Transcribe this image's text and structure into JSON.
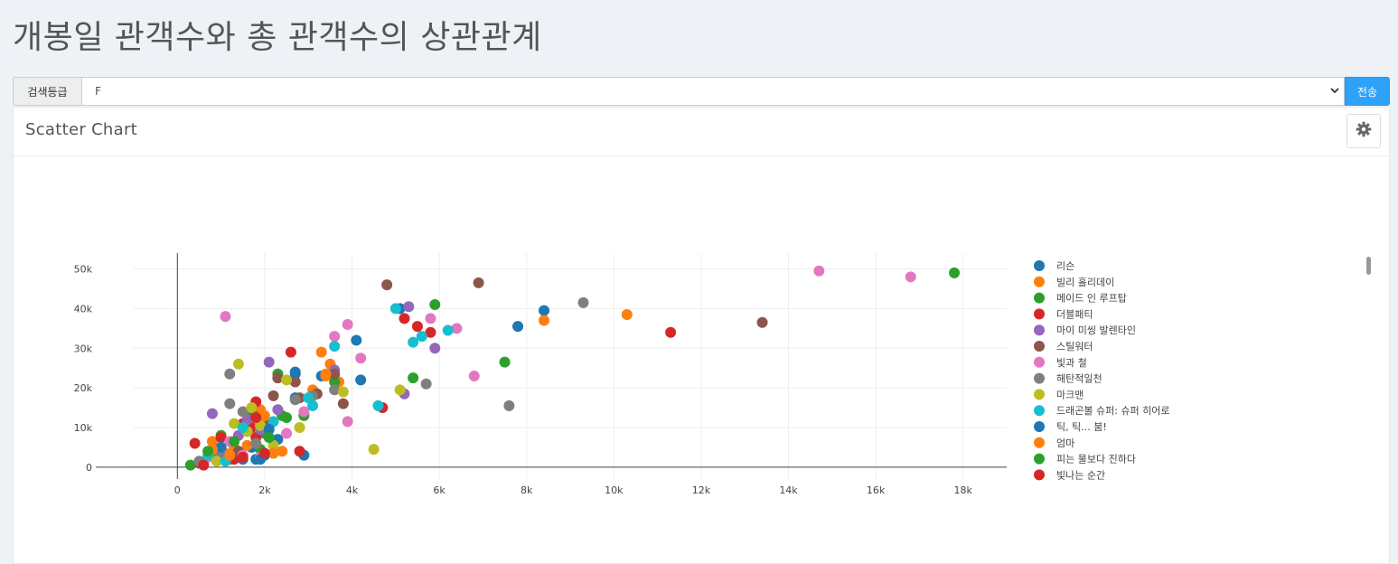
{
  "page": {
    "title": "개봉일 관객수와 총 관객수의 상관관계"
  },
  "search": {
    "label": "검색등급",
    "selected_value": "F",
    "submit_label": "전송"
  },
  "panel": {
    "title": "Scatter Chart",
    "settings_icon": "gear-icon"
  },
  "chart_data": {
    "type": "scatter",
    "xlim": [
      -1000,
      19000
    ],
    "ylim": [
      -3000,
      54000
    ],
    "x_ticks": [
      0,
      2000,
      4000,
      6000,
      8000,
      10000,
      12000,
      14000,
      16000,
      18000
    ],
    "x_tick_labels": [
      "0",
      "2k",
      "4k",
      "6k",
      "8k",
      "10k",
      "12k",
      "14k",
      "16k",
      "18k"
    ],
    "y_ticks": [
      0,
      10000,
      20000,
      30000,
      40000,
      50000
    ],
    "y_tick_labels": [
      "0",
      "10k",
      "20k",
      "30k",
      "40k",
      "50k"
    ],
    "grid": true,
    "legend_position": "right",
    "series": [
      {
        "name": "리슨",
        "color": "#1f77b4",
        "points": [
          [
            1500,
            2000
          ],
          [
            1800,
            2000
          ],
          [
            2000,
            3000
          ],
          [
            2300,
            7000
          ],
          [
            2700,
            23500
          ],
          [
            2700,
            17500
          ],
          [
            3300,
            23000
          ],
          [
            4100,
            32000
          ],
          [
            4200,
            22000
          ],
          [
            5100,
            40000
          ],
          [
            7800,
            35500
          ],
          [
            8400,
            39500
          ],
          [
            1700,
            5000
          ],
          [
            2900,
            3000
          ]
        ]
      },
      {
        "name": "빌리 홀리데이",
        "color": "#ff7f0e",
        "points": [
          [
            800,
            6500
          ],
          [
            1300,
            5000
          ],
          [
            1600,
            5500
          ],
          [
            1900,
            14500
          ],
          [
            2100,
            11000
          ],
          [
            2400,
            4000
          ],
          [
            2900,
            13500
          ],
          [
            3100,
            19500
          ],
          [
            3300,
            29000
          ],
          [
            3400,
            23000
          ],
          [
            3500,
            26000
          ],
          [
            3700,
            21500
          ],
          [
            8400,
            37000
          ],
          [
            10300,
            38500
          ],
          [
            1100,
            3500
          ]
        ]
      },
      {
        "name": "메이드 인 루프탑",
        "color": "#2ca02c",
        "points": [
          [
            300,
            500
          ],
          [
            1000,
            8000
          ],
          [
            1700,
            14000
          ],
          [
            1900,
            4500
          ],
          [
            2000,
            8500
          ],
          [
            2300,
            23500
          ],
          [
            2400,
            13000
          ],
          [
            2900,
            13000
          ],
          [
            3600,
            21500
          ],
          [
            5400,
            22500
          ],
          [
            5900,
            41000
          ],
          [
            7500,
            26500
          ],
          [
            17800,
            49000
          ],
          [
            1200,
            2000
          ]
        ]
      },
      {
        "name": "더블패티",
        "color": "#d62728",
        "points": [
          [
            400,
            6000
          ],
          [
            1000,
            7500
          ],
          [
            1300,
            2000
          ],
          [
            1500,
            11000
          ],
          [
            1800,
            16500
          ],
          [
            1800,
            7500
          ],
          [
            2100,
            10500
          ],
          [
            2600,
            29000
          ],
          [
            2800,
            4000
          ],
          [
            4700,
            15000
          ],
          [
            5200,
            37500
          ],
          [
            5500,
            35500
          ],
          [
            5800,
            34000
          ],
          [
            11300,
            34000
          ],
          [
            1700,
            10000
          ]
        ]
      },
      {
        "name": "마이 미씽 발렌타인",
        "color": "#9467bd",
        "points": [
          [
            800,
            13500
          ],
          [
            1100,
            2500
          ],
          [
            1600,
            12000
          ],
          [
            1900,
            9500
          ],
          [
            2100,
            26500
          ],
          [
            2300,
            14500
          ],
          [
            3600,
            24500
          ],
          [
            5200,
            18500
          ],
          [
            5300,
            40500
          ],
          [
            5900,
            30000
          ],
          [
            1400,
            8000
          ]
        ]
      },
      {
        "name": "스틸워터",
        "color": "#8c564b",
        "points": [
          [
            500,
            1000
          ],
          [
            900,
            3000
          ],
          [
            1600,
            9000
          ],
          [
            2000,
            12000
          ],
          [
            2200,
            18000
          ],
          [
            2300,
            22500
          ],
          [
            2700,
            21500
          ],
          [
            2800,
            17500
          ],
          [
            3200,
            18500
          ],
          [
            3600,
            23500
          ],
          [
            3800,
            16000
          ],
          [
            4800,
            46000
          ],
          [
            6900,
            46500
          ],
          [
            13400,
            36500
          ],
          [
            1400,
            4000
          ]
        ]
      },
      {
        "name": "빛과 철",
        "color": "#e377c2",
        "points": [
          [
            700,
            2500
          ],
          [
            1100,
            38000
          ],
          [
            1200,
            6500
          ],
          [
            1500,
            3000
          ],
          [
            1900,
            2500
          ],
          [
            2500,
            8500
          ],
          [
            2900,
            14000
          ],
          [
            3600,
            33000
          ],
          [
            3900,
            36000
          ],
          [
            4200,
            27500
          ],
          [
            5800,
            37500
          ],
          [
            6400,
            35000
          ],
          [
            6800,
            23000
          ],
          [
            14700,
            49500
          ],
          [
            16800,
            48000
          ],
          [
            3900,
            11500
          ]
        ]
      },
      {
        "name": "해탄적일천",
        "color": "#7f7f7f",
        "points": [
          [
            500,
            1500
          ],
          [
            900,
            3500
          ],
          [
            1200,
            16000
          ],
          [
            1200,
            23500
          ],
          [
            1500,
            14000
          ],
          [
            1800,
            6000
          ],
          [
            2700,
            17000
          ],
          [
            3100,
            18000
          ],
          [
            3600,
            19500
          ],
          [
            5700,
            21000
          ],
          [
            7600,
            15500
          ],
          [
            9300,
            41500
          ]
        ]
      },
      {
        "name": "마크맨",
        "color": "#bcbd22",
        "points": [
          [
            900,
            1500
          ],
          [
            1300,
            11000
          ],
          [
            1400,
            26000
          ],
          [
            1600,
            9000
          ],
          [
            1700,
            15000
          ],
          [
            1900,
            10500
          ],
          [
            2200,
            5500
          ],
          [
            2500,
            22000
          ],
          [
            2800,
            10000
          ],
          [
            3800,
            19000
          ],
          [
            4500,
            4500
          ],
          [
            5100,
            19500
          ]
        ]
      },
      {
        "name": "드래곤볼 슈퍼: 슈퍼 히어로",
        "color": "#17becf",
        "points": [
          [
            700,
            3000
          ],
          [
            1100,
            1500
          ],
          [
            1500,
            10000
          ],
          [
            2200,
            11500
          ],
          [
            3000,
            17500
          ],
          [
            3100,
            15500
          ],
          [
            3600,
            30500
          ],
          [
            4600,
            15500
          ],
          [
            5000,
            40000
          ],
          [
            5400,
            31500
          ],
          [
            5600,
            33000
          ],
          [
            6200,
            34500
          ]
        ]
      },
      {
        "name": "틱, 틱... 붐!",
        "color": "#1f77b4",
        "points": [
          [
            1000,
            5000
          ],
          [
            1900,
            2000
          ],
          [
            2100,
            9500
          ],
          [
            2700,
            24000
          ]
        ]
      },
      {
        "name": "엄마",
        "color": "#ff7f0e",
        "points": [
          [
            800,
            4500
          ],
          [
            1200,
            3000
          ],
          [
            2000,
            13000
          ],
          [
            2200,
            3500
          ],
          [
            3400,
            23500
          ]
        ]
      },
      {
        "name": "피는 물보다 진하다",
        "color": "#2ca02c",
        "points": [
          [
            700,
            4000
          ],
          [
            1300,
            6500
          ],
          [
            2100,
            7500
          ],
          [
            2500,
            12500
          ]
        ]
      },
      {
        "name": "빛나는 순간",
        "color": "#d62728",
        "points": [
          [
            600,
            500
          ],
          [
            1500,
            2500
          ],
          [
            1800,
            12500
          ],
          [
            2000,
            3500
          ]
        ]
      }
    ]
  }
}
